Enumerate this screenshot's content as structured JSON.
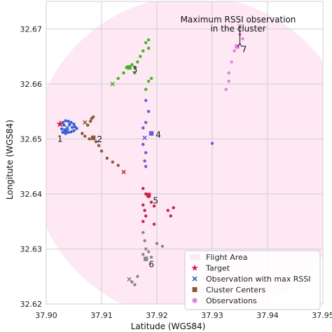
{
  "chart_data": {
    "type": "scatter",
    "title": "",
    "xlabel": "Latitude (WGS84)",
    "ylabel": "Longitute (WGS84)",
    "xlim": [
      37.9,
      37.95
    ],
    "ylim": [
      32.62,
      32.675
    ],
    "xticks": [
      "37.90",
      "37.91",
      "37.92",
      "37.93",
      "37.94",
      "37.95"
    ],
    "yticks": [
      "32.62",
      "32.63",
      "32.64",
      "32.65",
      "32.66",
      "32.67"
    ],
    "grid": true,
    "annotation": "Maximum RSSI observation\nin the cluster",
    "target": {
      "x": 37.9025,
      "y": 32.6527,
      "color": "#d6264f"
    },
    "flight_area_color": "#fde8f3",
    "clusters": [
      {
        "label": "1",
        "color": "#3461d6",
        "center": {
          "x": 37.9035,
          "y": 32.6515
        },
        "max_rssi": {
          "x": 37.9038,
          "y": 32.652
        },
        "points": [
          [
            37.903,
            32.653
          ],
          [
            37.9035,
            32.6533
          ],
          [
            37.904,
            32.6532
          ],
          [
            37.9045,
            32.653
          ],
          [
            37.905,
            32.6527
          ],
          [
            37.9052,
            32.6522
          ],
          [
            37.9055,
            32.6519
          ],
          [
            37.905,
            32.6515
          ],
          [
            37.9045,
            32.6513
          ],
          [
            37.904,
            32.6512
          ],
          [
            37.9035,
            32.651
          ],
          [
            37.903,
            32.6512
          ],
          [
            37.9028,
            32.6518
          ],
          [
            37.9032,
            32.6525
          ],
          [
            37.9042,
            32.6526
          ],
          [
            37.9047,
            32.6521
          ]
        ]
      },
      {
        "label": "2",
        "color": "#8b5a3c",
        "center": {
          "x": 37.9085,
          "y": 32.6502
        },
        "max_rssi": {
          "x": 37.907,
          "y": 32.653
        },
        "points": [
          [
            37.9075,
            32.6525
          ],
          [
            37.908,
            32.6532
          ],
          [
            37.9082,
            32.6537
          ],
          [
            37.9085,
            32.654
          ],
          [
            37.9065,
            32.651
          ],
          [
            37.907,
            32.6505
          ],
          [
            37.9078,
            32.65
          ],
          [
            37.909,
            32.6495
          ],
          [
            37.9095,
            32.6488
          ],
          [
            37.91,
            32.6478
          ],
          [
            37.911,
            32.6465
          ],
          [
            37.912,
            32.6458
          ],
          [
            37.913,
            32.6452
          ]
        ]
      },
      {
        "label": "3",
        "color": "#4caf2a",
        "center": {
          "x": 37.915,
          "y": 32.663
        },
        "max_rssi": {
          "x": 37.912,
          "y": 32.66
        },
        "points": [
          [
            37.913,
            32.661
          ],
          [
            37.914,
            32.662
          ],
          [
            37.9145,
            32.663
          ],
          [
            37.9155,
            32.6635
          ],
          [
            37.916,
            32.663
          ],
          [
            37.9165,
            32.664
          ],
          [
            37.917,
            32.665
          ],
          [
            37.9175,
            32.666
          ],
          [
            37.918,
            32.6675
          ],
          [
            37.9185,
            32.668
          ],
          [
            37.9185,
            32.6665
          ],
          [
            37.919,
            32.661
          ],
          [
            37.9185,
            32.6605
          ],
          [
            37.918,
            32.659
          ],
          [
            37.916,
            32.662
          ]
        ]
      },
      {
        "label": "4",
        "color": "#6b5bd6",
        "center": {
          "x": 37.919,
          "y": 32.651
        },
        "max_rssi": {
          "x": 37.9178,
          "y": 32.6502
        },
        "points": [
          [
            37.918,
            32.657
          ],
          [
            37.9185,
            32.655
          ],
          [
            37.918,
            32.653
          ],
          [
            37.9175,
            32.652
          ],
          [
            37.9175,
            32.649
          ],
          [
            37.918,
            32.6475
          ],
          [
            37.9178,
            32.646
          ],
          [
            37.918,
            32.645
          ],
          [
            37.93,
            32.6492
          ]
        ]
      },
      {
        "label": "5",
        "color": "#cc2244",
        "center": {
          "x": 37.9185,
          "y": 32.6398
        },
        "max_rssi": {
          "x": 37.914,
          "y": 32.644
        },
        "points": [
          [
            37.9175,
            32.641
          ],
          [
            37.918,
            32.64
          ],
          [
            37.9185,
            32.6395
          ],
          [
            37.9175,
            32.638
          ],
          [
            37.9178,
            32.637
          ],
          [
            37.918,
            32.636
          ],
          [
            37.9175,
            32.635
          ],
          [
            37.919,
            32.6385
          ],
          [
            37.9195,
            32.6378
          ],
          [
            37.922,
            32.637
          ],
          [
            37.9225,
            32.636
          ],
          [
            37.923,
            32.6375
          ],
          [
            37.9195,
            32.6345
          ]
        ]
      },
      {
        "label": "6",
        "color": "#888888",
        "center": {
          "x": 37.918,
          "y": 32.6282
        },
        "max_rssi": {
          "x": 37.915,
          "y": 32.6245
        },
        "points": [
          [
            37.9175,
            32.633
          ],
          [
            37.9178,
            32.6315
          ],
          [
            37.918,
            32.63
          ],
          [
            37.9185,
            32.6295
          ],
          [
            37.9175,
            32.629
          ],
          [
            37.919,
            32.6285
          ],
          [
            37.92,
            32.631
          ],
          [
            37.921,
            32.6305
          ],
          [
            37.9155,
            32.624
          ],
          [
            37.916,
            32.6235
          ],
          [
            37.9165,
            32.625
          ]
        ]
      },
      {
        "label": "7",
        "color": "#e37fe0",
        "center": {
          "x": 37.9345,
          "y": 32.6668
        },
        "max_rssi": {
          "x": 37.935,
          "y": 32.6705
        },
        "points": [
          [
            37.935,
            32.669
          ],
          [
            37.9355,
            32.6682
          ],
          [
            37.934,
            32.666
          ],
          [
            37.9335,
            32.664
          ],
          [
            37.933,
            32.662
          ],
          [
            37.933,
            32.6605
          ],
          [
            37.9325,
            32.659
          ]
        ]
      }
    ],
    "legend": {
      "placement": "bottom-right",
      "entries": [
        {
          "label": "Flight Area",
          "marker": "area"
        },
        {
          "label": "Target",
          "marker": "star",
          "color": "#d6264f"
        },
        {
          "label": "Observation with max RSSI",
          "marker": "x",
          "color": "#3a5fb8"
        },
        {
          "label": "Cluster Centers",
          "marker": "square",
          "color": "#8b5a3c"
        },
        {
          "label": "Observations",
          "marker": "circle",
          "color": "#e37fe0"
        }
      ]
    }
  }
}
